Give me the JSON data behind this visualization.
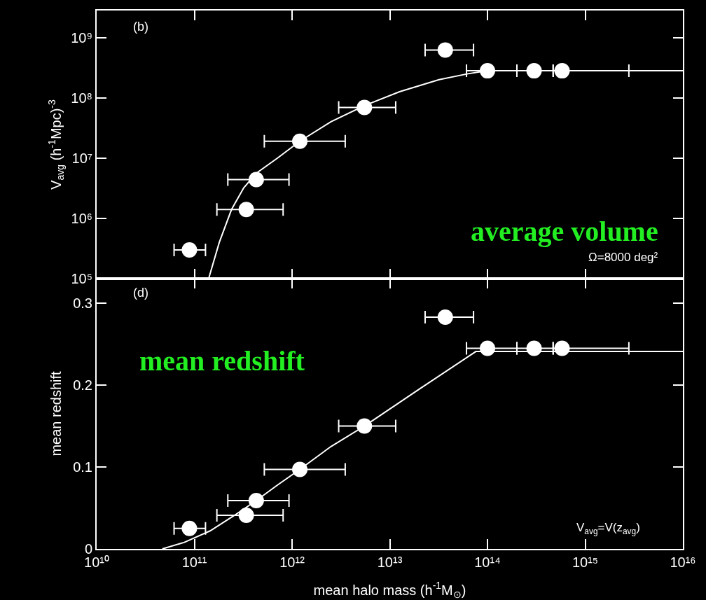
{
  "chart_data": [
    {
      "type": "scatter",
      "ylabel": "V$_{avg}$ (h$^{-1}$Mpc)$^{-3}$",
      "log": "xy",
      "tick_labels": "y",
      "annotations": [
        "(b)",
        "average volume",
        "Ω=8000 deg²"
      ],
      "xlim": [
        10000000000,
        10000000000000000
      ],
      "xticks": [
        10000000000,
        100000000000,
        1000000000000,
        10000000000000,
        100000000000000,
        1000000000000000,
        10000000000000000
      ],
      "ylim": [
        100000,
        2800000000
      ],
      "yticks": [
        {
          "value": 100000,
          "label": "10⁵"
        },
        {
          "value": 1000000,
          "label": "10⁶"
        },
        {
          "value": 10000000,
          "label": "10⁷"
        },
        {
          "value": 100000000,
          "label": "10⁸"
        },
        {
          "value": 1000000000,
          "label": "10⁹"
        }
      ],
      "series": [
        {
          "type": "scatter",
          "marker": "circle",
          "color": "#ffffff",
          "x": [
            89000000000.0,
            340000000000.0,
            430000000000.0,
            1200000000000.0,
            5500000000000.0,
            37000000000000.0,
            100000000000000.0,
            300000000000000.0,
            580000000000000.0
          ],
          "values": [
            300000.0,
            1400000.0,
            4400000.0,
            19000000.0,
            69000000.0,
            620000000.0,
            280000000.0,
            280000000.0,
            280000000.0
          ],
          "xerrors": [
            [
              62000000000.0,
              130000000000.0
            ],
            [
              170000000000.0,
              810000000000.0
            ],
            [
              220000000000.0,
              930000000000.0
            ],
            [
              520000000000.0,
              3500000000000.0
            ],
            [
              3000000000000.0,
              11500000000000.0
            ],
            [
              23000000000000.0,
              72000000000000.0
            ],
            [
              61000000000000.0,
              200000000000000.0
            ],
            [
              200000000000000.0,
              470000000000000.0
            ],
            [
              470000000000000.0,
              2800000000000000.0
            ]
          ]
        },
        {
          "type": "line",
          "marker": "none",
          "line_style": "solid",
          "color": "#ffffff",
          "x": [
            140000000000.0,
            180000000000.0,
            240000000000.0,
            320000000000.0,
            430000000000.0,
            710000000000.0,
            1200000000000.0,
            2500000000000.0,
            5500000000000.0,
            12600000000000.0,
            32000000000000.0,
            63000000000000.0,
            100000000000000.0,
            1e+16
          ],
          "values": [
            100000.0,
            400000.0,
            1400000.0,
            3200000.0,
            5600000.0,
            10000000.0,
            19000000.0,
            40000000.0,
            74000000.0,
            126000000.0,
            200000000.0,
            250000000.0,
            280000000.0,
            280000000.0
          ]
        }
      ]
    },
    {
      "type": "scatter",
      "xlabel": "mean halo mass (h$^{-1}$M$_{⊙}$)",
      "ylabel": "mean redshift",
      "log": "x",
      "annotations": [
        "(d)",
        "mean redshift",
        "V$_{avg}$=V(z$_{avg}$)"
      ],
      "xlim": [
        10000000000,
        10000000000000000
      ],
      "xticks": [
        {
          "value": 10000000000,
          "label": "10¹⁰"
        },
        {
          "value": 100000000000,
          "label": "10¹¹"
        },
        {
          "value": 1000000000000,
          "label": "10¹²"
        },
        {
          "value": 10000000000000,
          "label": "10¹³"
        },
        {
          "value": 100000000000000,
          "label": "10¹⁴"
        },
        {
          "value": 1000000000000000,
          "label": "10¹⁵"
        },
        {
          "value": 10000000000000000,
          "label": "10¹⁶"
        }
      ],
      "ylim": [
        0,
        0.33
      ],
      "yticks": [
        0,
        0.1,
        0.2,
        0.3
      ],
      "series": [
        {
          "type": "scatter",
          "marker": "circle",
          "color": "#ffffff",
          "x": [
            89000000000.0,
            340000000000.0,
            430000000000.0,
            1200000000000.0,
            5500000000000.0,
            37000000000000.0,
            100000000000000.0,
            300000000000000.0,
            580000000000000.0
          ],
          "values": [
            0.025,
            0.041,
            0.059,
            0.097,
            0.15,
            0.283,
            0.245,
            0.245,
            0.245
          ],
          "xerrors": [
            [
              62000000000.0,
              130000000000.0
            ],
            [
              170000000000.0,
              810000000000.0
            ],
            [
              220000000000.0,
              930000000000.0
            ],
            [
              520000000000.0,
              3500000000000.0
            ],
            [
              3000000000000.0,
              11500000000000.0
            ],
            [
              23000000000000.0,
              72000000000000.0
            ],
            [
              61000000000000.0,
              200000000000000.0
            ],
            [
              200000000000000.0,
              470000000000000.0
            ],
            [
              470000000000000.0,
              2800000000000000.0
            ]
          ]
        },
        {
          "type": "line",
          "marker": "none",
          "line_style": "solid",
          "color": "#ffffff",
          "x": [
            47000000000.0,
            79000000000.0,
            145000000000.0,
            250000000000.0,
            430000000000.0,
            710000000000.0,
            1200000000000.0,
            2500000000000.0,
            5500000000000.0,
            20000000000000.0,
            76000000000000.0,
            1e+16
          ],
          "values": [
            0,
            0.008,
            0.022,
            0.04,
            0.059,
            0.078,
            0.097,
            0.125,
            0.15,
            0.195,
            0.241,
            0.241
          ]
        }
      ]
    }
  ]
}
